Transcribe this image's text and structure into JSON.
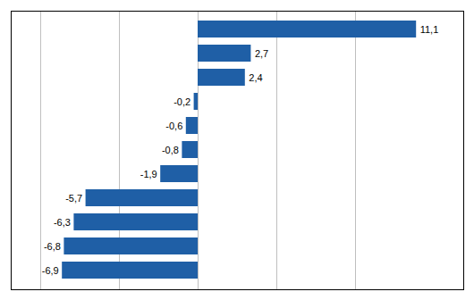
{
  "chart_data": {
    "type": "bar",
    "orientation": "horizontal",
    "categories": [
      null,
      null,
      null,
      null,
      null,
      null,
      null,
      null,
      null,
      null,
      null
    ],
    "values": [
      11.1,
      2.7,
      2.4,
      -0.2,
      -0.6,
      -0.8,
      -1.9,
      -5.7,
      -6.3,
      -6.8,
      -6.9
    ],
    "value_labels": [
      "11,1",
      "2,7",
      "2,4",
      "-0,2",
      "-0,6",
      "-0,8",
      "-1,9",
      "-5,7",
      "-6,3",
      "-6,8",
      "-6,9"
    ],
    "data_labels": true,
    "color": "#1f5fa6",
    "xlim": [
      -9.5,
      13.5
    ],
    "xticks": [
      -8,
      -4,
      0,
      4,
      8
    ],
    "grid": true,
    "tick_labels": false
  }
}
